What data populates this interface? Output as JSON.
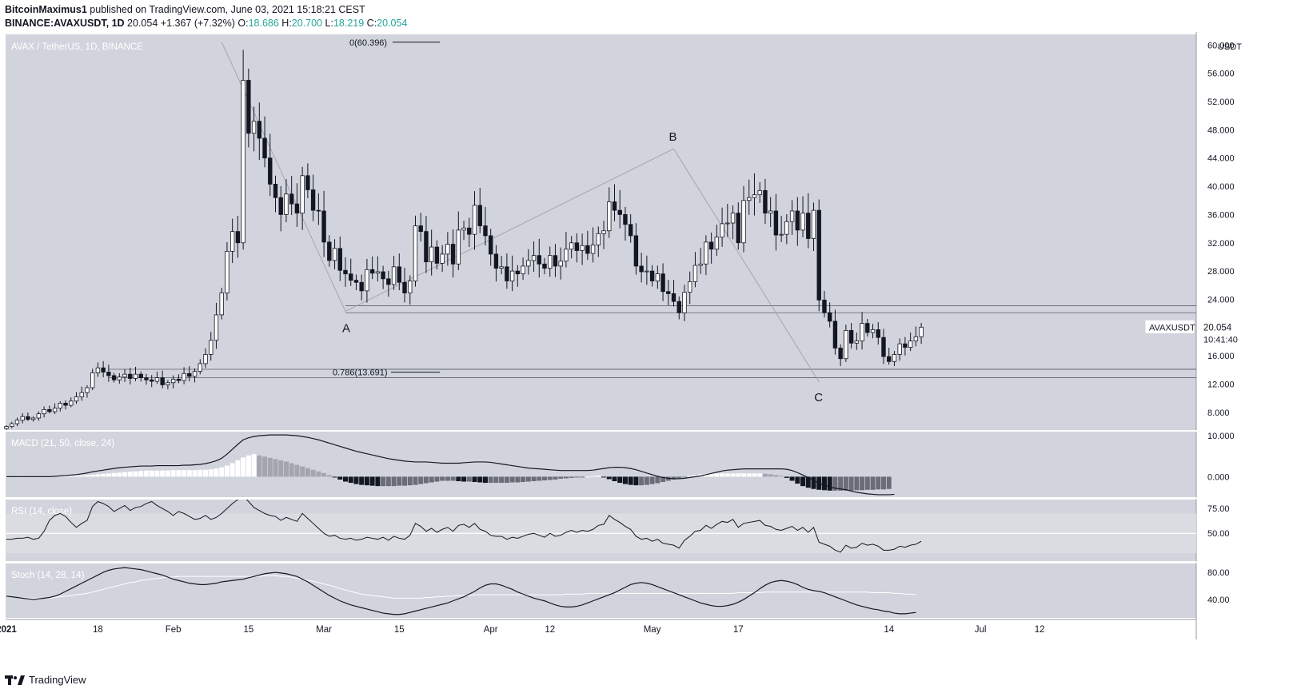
{
  "header": {
    "author": "BitcoinMaximus1",
    "published_text": "published on TradingView.com, June 03, 2021 15:18:21 CEST",
    "symbol_line": "BINANCE:AVAXUSDT, 1D",
    "last": "20.054",
    "change": "+1.367 (+7.32%)",
    "o_label": "O:",
    "o": "18.686",
    "h_label": "H:",
    "h": "20.700",
    "l_label": "L:",
    "l": "18.219",
    "c_label": "C:",
    "c": "20.054"
  },
  "chart_data": {
    "type": "candlestick",
    "title": "AVAX / TetherUS, 1D, BINANCE",
    "currency": "USDT",
    "ylim": [
      5.5,
      61.5
    ],
    "y_ticks": [
      "60.000",
      "56.000",
      "52.000",
      "48.000",
      "44.000",
      "40.000",
      "36.000",
      "32.000",
      "28.000",
      "24.000",
      "20.000",
      "16.000",
      "12.000",
      "8.000"
    ],
    "x_ticks": [
      {
        "label": "2021",
        "day": 1,
        "bold": true
      },
      {
        "label": "18",
        "day": 18
      },
      {
        "label": "Feb",
        "day": 32
      },
      {
        "label": "15",
        "day": 46
      },
      {
        "label": "Mar",
        "day": 60
      },
      {
        "label": "15",
        "day": 74
      },
      {
        "label": "Apr",
        "day": 91
      },
      {
        "label": "12",
        "day": 102
      },
      {
        "label": "May",
        "day": 121
      },
      {
        "label": "17",
        "day": 137
      },
      {
        "label": "14",
        "day": 165
      },
      {
        "label": "Jul",
        "day": 182
      },
      {
        "label": "12",
        "day": 193
      }
    ],
    "closes": [
      6.0,
      6.4,
      6.9,
      7.4,
      7.0,
      7.2,
      7.8,
      8.4,
      8.1,
      8.6,
      9.3,
      9.0,
      9.6,
      10.2,
      10.8,
      11.5,
      13.6,
      14.3,
      13.7,
      13.2,
      12.6,
      13.0,
      13.4,
      12.8,
      13.4,
      12.9,
      12.6,
      12.4,
      12.9,
      11.9,
      12.2,
      12.7,
      12.5,
      13.5,
      13.1,
      13.8,
      14.9,
      16.2,
      18.2,
      21.8,
      24.9,
      30.8,
      33.6,
      32.0,
      55.0,
      47.5,
      49.2,
      46.8,
      44.0,
      40.3,
      38.4,
      36.0,
      38.9,
      37.5,
      36.2,
      41.5,
      39.5,
      36.6,
      36.5,
      32.1,
      29.5,
      31.2,
      28.1,
      27.6,
      26.7,
      26.4,
      25.2,
      28.2,
      27.7,
      27.9,
      26.9,
      26.1,
      28.6,
      26.4,
      24.9,
      26.6,
      34.4,
      33.6,
      29.3,
      31.4,
      29.1,
      30.4,
      31.8,
      29.0,
      33.8,
      34.1,
      33.2,
      37.3,
      34.4,
      33.0,
      30.4,
      28.4,
      28.6,
      26.6,
      28.0,
      27.6,
      28.7,
      29.5,
      30.2,
      29.0,
      28.4,
      30.2,
      28.7,
      29.4,
      31.1,
      32.0,
      30.9,
      31.6,
      30.5,
      31.7,
      33.3,
      33.7,
      37.8,
      36.6,
      36.0,
      34.6,
      33.0,
      28.7,
      27.9,
      28.0,
      26.6,
      27.6,
      25.1,
      24.8,
      23.7,
      22.1,
      25.0,
      26.5,
      28.8,
      29.0,
      32.1,
      31.1,
      32.8,
      34.7,
      34.8,
      36.2,
      32.0,
      38.0,
      38.4,
      38.8,
      39.4,
      36.2,
      36.5,
      33.1,
      33.2,
      35.0,
      36.5,
      33.8,
      36.2,
      32.6,
      36.6,
      23.9,
      22.1,
      20.9,
      17.1,
      15.6,
      19.6,
      17.8,
      18.1,
      20.6,
      19.3,
      19.7,
      18.6,
      15.9,
      15.2,
      16.2,
      17.7,
      17.2,
      18.1,
      18.7,
      20.054
    ],
    "channel_lines": [
      23.1,
      22.1,
      14.1,
      12.9
    ],
    "labels": {
      "a": "A",
      "b": "B",
      "c": "C"
    },
    "fib": [
      {
        "label": "0(60.396)",
        "value": 60.396
      },
      {
        "label": "0.786(13.691)",
        "value": 13.691
      }
    ],
    "abc_path": [
      {
        "day": 41,
        "value": 60.4
      },
      {
        "day": 64,
        "value": 22.3
      },
      {
        "day": 125,
        "value": 45.3
      },
      {
        "day": 152,
        "value": 12.3
      }
    ],
    "last_price_tag": {
      "symbol": "AVAXUSDT",
      "price": "20.054",
      "timer": "10:41:40"
    },
    "macd": {
      "label": "MACD (21, 50, close, 24)",
      "y_ticks": [
        "10.000",
        "0.000"
      ],
      "ylim": [
        -5,
        11
      ],
      "line": [
        0,
        0,
        0,
        0,
        0,
        0,
        0,
        0,
        0,
        0.1,
        0.2,
        0.3,
        0.4,
        0.5,
        0.7,
        0.9,
        1.2,
        1.4,
        1.6,
        1.8,
        2.0,
        2.2,
        2.3,
        2.4,
        2.5,
        2.6,
        2.6,
        2.6,
        2.7,
        2.7,
        2.7,
        2.7,
        2.7,
        2.8,
        2.8,
        2.9,
        3.0,
        3.2,
        3.5,
        3.9,
        4.5,
        5.5,
        6.7,
        7.9,
        9.0,
        9.5,
        9.8,
        10.0,
        10.1,
        10.2,
        10.2,
        10.2,
        10.2,
        10.1,
        10.0,
        9.8,
        9.6,
        9.3,
        9.0,
        8.6,
        8.2,
        7.8,
        7.4,
        7.0,
        6.6,
        6.2,
        5.9,
        5.6,
        5.3,
        5.0,
        4.7,
        4.4,
        4.2,
        4.0,
        3.8,
        3.7,
        3.6,
        3.6,
        3.6,
        3.5,
        3.4,
        3.3,
        3.3,
        3.3,
        3.3,
        3.4,
        3.5,
        3.6,
        3.6,
        3.6,
        3.5,
        3.3,
        3.1,
        2.9,
        2.7,
        2.5,
        2.3,
        2.1,
        2.0,
        1.9,
        1.8,
        1.7,
        1.6,
        1.5,
        1.5,
        1.5,
        1.5,
        1.5,
        1.5,
        1.6,
        1.8,
        2.0,
        2.2,
        2.3,
        2.3,
        2.2,
        2.0,
        1.7,
        1.3,
        0.9,
        0.5,
        0.1,
        -0.2,
        -0.4,
        -0.5,
        -0.5,
        -0.4,
        -0.2,
        0,
        0.2,
        0.5,
        0.8,
        1.1,
        1.4,
        1.6,
        1.7,
        1.8,
        1.9,
        1.9,
        1.9,
        1.9,
        1.9,
        1.9,
        1.9,
        1.9,
        1.8,
        1.5,
        1.0,
        0.4,
        -0.2,
        -0.9,
        -1.6,
        -2.1,
        -2.5,
        -2.8,
        -3.0,
        -3.2,
        -3.5,
        -3.8,
        -4.0,
        -4.2,
        -4.3,
        -4.4,
        -4.4,
        -4.4,
        -4.3
      ],
      "hist": [
        0,
        0,
        0,
        0,
        0,
        0,
        0,
        0,
        0,
        0.1,
        0.1,
        0.2,
        0.2,
        0.3,
        0.3,
        0.4,
        0.5,
        0.6,
        0.7,
        0.8,
        0.9,
        1.0,
        1.1,
        1.2,
        1.3,
        1.4,
        1.5,
        1.5,
        1.5,
        1.5,
        1.5,
        1.6,
        1.6,
        1.6,
        1.6,
        1.6,
        1.7,
        1.7,
        1.8,
        2.0,
        2.3,
        2.7,
        3.3,
        4.0,
        4.7,
        5.2,
        5.5,
        5.2,
        4.9,
        4.6,
        4.3,
        4.0,
        3.7,
        3.3,
        2.9,
        2.5,
        2.1,
        1.7,
        1.3,
        0.9,
        0.4,
        -0.2,
        -0.7,
        -1.2,
        -1.5,
        -1.8,
        -2.0,
        -2.1,
        -2.2,
        -2.3,
        -2.3,
        -2.3,
        -2.3,
        -2.2,
        -2.2,
        -2.1,
        -2.0,
        -1.8,
        -1.6,
        -1.4,
        -1.2,
        -1.0,
        -1.0,
        -1.0,
        -1.1,
        -1.2,
        -1.2,
        -1.3,
        -1.4,
        -1.5,
        -1.5,
        -1.5,
        -1.5,
        -1.5,
        -1.4,
        -1.4,
        -1.3,
        -1.2,
        -1.1,
        -1.0,
        -0.9,
        -0.8,
        -0.7,
        -0.5,
        -0.4,
        -0.3,
        -0.2,
        -0.1,
        0,
        0.2,
        0.3,
        -0.2,
        -0.6,
        -1.1,
        -1.5,
        -1.8,
        -2.0,
        -2.1,
        -2.1,
        -2.0,
        -1.8,
        -1.6,
        -1.3,
        -1.0,
        -0.7,
        -0.4,
        -0.1,
        0.2,
        0.4,
        0.6,
        0.7,
        0.8,
        0.8,
        0.8,
        0.8,
        0.8,
        0.8,
        0.8,
        0.8,
        0.8,
        0.8,
        0.7,
        0.6,
        0.4,
        0.2,
        -0.3,
        -1.0,
        -1.7,
        -2.3,
        -2.7,
        -3.0,
        -3.2,
        -3.3,
        -3.4,
        -3.4,
        -3.4,
        -3.4,
        -3.4,
        -3.3,
        -3.3,
        -3.2,
        -3.2,
        -3.1,
        -3.1,
        -3.0
      ]
    },
    "rsi": {
      "label": "RSI (14, close)",
      "y_ticks": [
        "75.00",
        "50.00"
      ],
      "ylim": [
        22,
        84
      ],
      "values": [
        44,
        44,
        45,
        45,
        46,
        44,
        45,
        52,
        63,
        68,
        70,
        67,
        61,
        56,
        60,
        63,
        77,
        82,
        80,
        77,
        72,
        75,
        78,
        73,
        76,
        77,
        80,
        82,
        78,
        75,
        72,
        68,
        72,
        70,
        67,
        64,
        65,
        68,
        64,
        66,
        70,
        75,
        80,
        84,
        88,
        82,
        76,
        73,
        70,
        68,
        67,
        63,
        66,
        64,
        62,
        70,
        65,
        60,
        55,
        50,
        47,
        48,
        45,
        44,
        45,
        43,
        44,
        46,
        45,
        44,
        46,
        43,
        47,
        45,
        44,
        48,
        60,
        57,
        52,
        55,
        51,
        54,
        56,
        52,
        58,
        59,
        56,
        60,
        54,
        52,
        48,
        47,
        47,
        44,
        46,
        45,
        47,
        49,
        50,
        48,
        46,
        50,
        47,
        48,
        51,
        53,
        51,
        53,
        52,
        54,
        58,
        59,
        68,
        64,
        61,
        57,
        54,
        47,
        44,
        45,
        42,
        44,
        40,
        39,
        38,
        35,
        43,
        47,
        52,
        53,
        58,
        55,
        59,
        62,
        61,
        64,
        56,
        60,
        61,
        62,
        63,
        58,
        57,
        54,
        53,
        55,
        57,
        53,
        56,
        51,
        56,
        41,
        39,
        37,
        33,
        31,
        38,
        35,
        36,
        40,
        38,
        39,
        37,
        33,
        33,
        34,
        37,
        36,
        38,
        39,
        42
      ]
    },
    "stoch": {
      "label": "Stoch (14, 28, 14)",
      "y_ticks": [
        "80.00",
        "40.00"
      ],
      "ylim": [
        13,
        93
      ],
      "k": [
        45,
        44,
        43,
        42,
        41,
        40,
        41,
        42,
        43,
        45,
        48,
        52,
        56,
        60,
        64,
        68,
        72,
        76,
        80,
        83,
        85,
        86,
        87,
        86,
        85,
        84,
        82,
        80,
        78,
        76,
        73,
        70,
        68,
        66,
        64,
        63,
        62,
        62,
        63,
        64,
        66,
        67,
        68,
        69,
        70,
        72,
        74,
        76,
        78,
        79,
        80,
        79,
        78,
        76,
        74,
        70,
        66,
        61,
        56,
        51,
        46,
        42,
        38,
        35,
        32,
        30,
        28,
        26,
        24,
        22,
        20,
        19,
        18,
        18,
        19,
        21,
        23,
        25,
        27,
        29,
        31,
        33,
        35,
        38,
        41,
        44,
        48,
        52,
        57,
        61,
        63,
        63,
        61,
        58,
        55,
        51,
        48,
        45,
        42,
        40,
        38,
        35,
        32,
        30,
        29,
        29,
        30,
        32,
        35,
        38,
        41,
        44,
        47,
        50,
        54,
        58,
        62,
        64,
        65,
        64,
        62,
        59,
        56,
        53,
        50,
        47,
        44,
        41,
        38,
        35,
        33,
        31,
        30,
        30,
        31,
        33,
        36,
        40,
        45,
        50,
        56,
        61,
        65,
        67,
        68,
        67,
        65,
        62,
        58,
        55,
        53,
        52,
        50,
        47,
        44,
        41,
        38,
        35,
        32,
        30,
        28,
        26,
        25,
        23,
        22,
        20,
        19,
        19,
        20,
        21
      ],
      "d": [
        45,
        44,
        43,
        43,
        42,
        42,
        42,
        42,
        42,
        43,
        44,
        45,
        46,
        47,
        48,
        49,
        51,
        53,
        55,
        57,
        59,
        61,
        63,
        65,
        66,
        68,
        69,
        70,
        71,
        72,
        73,
        73,
        74,
        74,
        74,
        74,
        74,
        74,
        74,
        74,
        74,
        74,
        74,
        74,
        74,
        74,
        74,
        74,
        75,
        75,
        75,
        74,
        74,
        73,
        71,
        70,
        68,
        67,
        65,
        63,
        61,
        59,
        56,
        54,
        52,
        50,
        48,
        47,
        46,
        45,
        44,
        43,
        42,
        42,
        42,
        42,
        42,
        42,
        43,
        43,
        44,
        44,
        45,
        45,
        46,
        46,
        46,
        47,
        47,
        47,
        47,
        47,
        47,
        47,
        47,
        47,
        47,
        47,
        47,
        47,
        47,
        47,
        47,
        47,
        48,
        48,
        48,
        48,
        49,
        49,
        49,
        49,
        49,
        49,
        49,
        49,
        49,
        49,
        49,
        49,
        49,
        49,
        49,
        49,
        49,
        49,
        49,
        49,
        49,
        49,
        49,
        49,
        49,
        49,
        49,
        49,
        50,
        50,
        50,
        50,
        50,
        51,
        51,
        51,
        51,
        51,
        51,
        51,
        51,
        51,
        51,
        51,
        51,
        51,
        51,
        51,
        51,
        51,
        51,
        51,
        51,
        50,
        50,
        50,
        50,
        49,
        49,
        48,
        48,
        47
      ]
    }
  },
  "footer": {
    "brand": "TradingView"
  }
}
